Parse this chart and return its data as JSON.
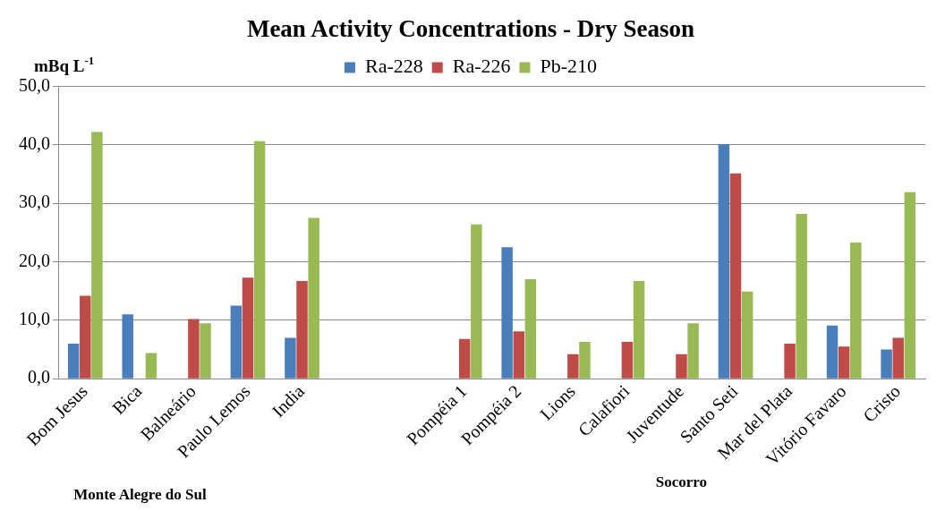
{
  "chart_data": {
    "type": "bar",
    "title": "Mean Activity Concentrations - Dry Season",
    "ylabel": "mBq L$^{-1}$",
    "categories": [
      "Bom Jesus",
      "Bica",
      "Balneário",
      "Paulo Lemos",
      "India",
      null,
      null,
      "Pompéia 1",
      "Pompéia 2",
      "Lions",
      "Calafiori",
      "Juventude",
      "Santo Seti",
      "Mar del Plata",
      "Vitório Favaro",
      "Cristo"
    ],
    "series": [
      {
        "name": "Ra-228",
        "color": "#4a7ebb",
        "values": [
          6.0,
          11.0,
          null,
          12.5,
          7.0,
          null,
          null,
          null,
          22.5,
          null,
          null,
          null,
          40.1,
          null,
          9.1,
          5.0
        ]
      },
      {
        "name": "Ra-226",
        "color": "#be4b48",
        "values": [
          14.2,
          null,
          10.2,
          17.3,
          16.7,
          null,
          null,
          6.8,
          8.1,
          4.2,
          6.3,
          4.2,
          35.1,
          6.0,
          5.5,
          7.0
        ]
      },
      {
        "name": "Pb-210",
        "color": "#98b954",
        "values": [
          42.2,
          4.4,
          9.5,
          40.6,
          27.5,
          null,
          null,
          26.4,
          17.0,
          6.3,
          16.7,
          9.5,
          14.9,
          28.2,
          23.3,
          31.9
        ]
      }
    ],
    "ylim": [
      0,
      50
    ],
    "yticks": [
      {
        "value": 0,
        "label": "0,0"
      },
      {
        "value": 10,
        "label": "10,0"
      },
      {
        "value": 20,
        "label": "20,0"
      },
      {
        "value": 30,
        "label": "30,0"
      },
      {
        "value": 40,
        "label": "40,0"
      },
      {
        "value": 50,
        "label": "50,0"
      }
    ],
    "grid": "y",
    "legend": "top",
    "annotations": [
      "Monte Alegre do Sul",
      "Socorro"
    ]
  }
}
